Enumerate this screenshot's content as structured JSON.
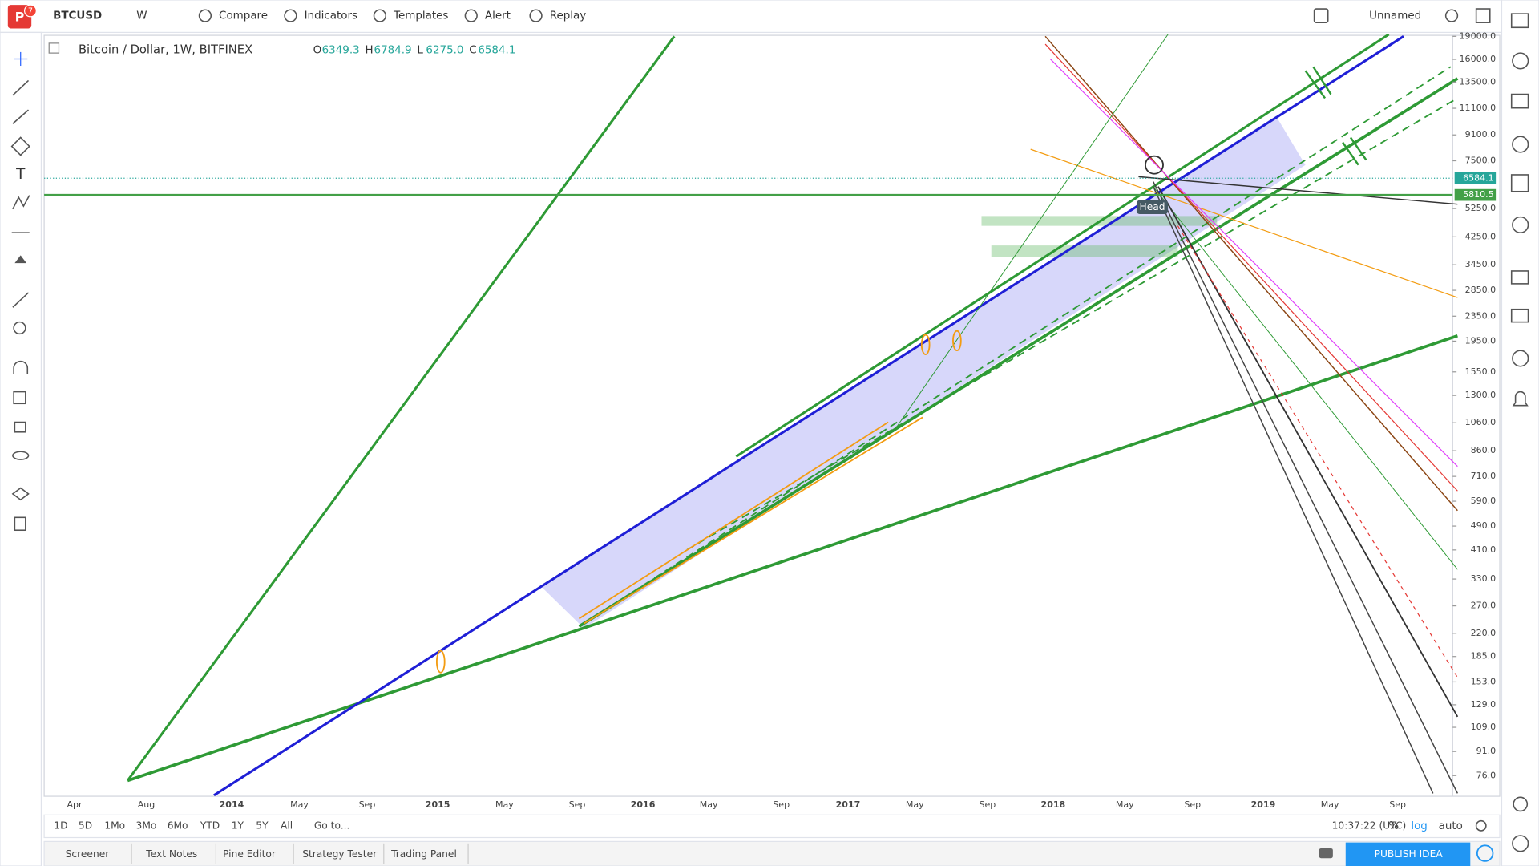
{
  "toolbar": {
    "logo_badge": "7",
    "symbol": "BTCUSD",
    "interval": "W",
    "items": [
      "Compare",
      "Indicators",
      "Templates",
      "Alert",
      "Replay"
    ],
    "layout_name": "Unnamed"
  },
  "legend": {
    "title": "Bitcoin / Dollar, 1W, BITFINEX",
    "ohlc": [
      {
        "key": "O",
        "value": "6349.3"
      },
      {
        "key": "H",
        "value": "6784.9"
      },
      {
        "key": "L",
        "value": "6275.0"
      },
      {
        "key": "C",
        "value": "6584.1"
      }
    ]
  },
  "price_axis": {
    "scale": "log",
    "ylim": [
      65.6,
      19000
    ],
    "ticks": [
      {
        "value": 19000,
        "label": "19000.0"
      },
      {
        "value": 16000,
        "label": "16000.0"
      },
      {
        "value": 13500,
        "label": "13500.0"
      },
      {
        "value": 11100,
        "label": "11100.0"
      },
      {
        "value": 9100,
        "label": "9100.0"
      },
      {
        "value": 7500,
        "label": "7500.0"
      },
      {
        "value": 5250,
        "label": "5250.0"
      },
      {
        "value": 4250,
        "label": "4250.0"
      },
      {
        "value": 3450,
        "label": "3450.0"
      },
      {
        "value": 2850,
        "label": "2850.0"
      },
      {
        "value": 2350,
        "label": "2350.0"
      },
      {
        "value": 1950,
        "label": "1950.0"
      },
      {
        "value": 1550,
        "label": "1550.0"
      },
      {
        "value": 1300,
        "label": "1300.0"
      },
      {
        "value": 1060,
        "label": "1060.0"
      },
      {
        "value": 860,
        "label": "860.0"
      },
      {
        "value": 710,
        "label": "710.0"
      },
      {
        "value": 590,
        "label": "590.0"
      },
      {
        "value": 490,
        "label": "490.0"
      },
      {
        "value": 410,
        "label": "410.0"
      },
      {
        "value": 330,
        "label": "330.0"
      },
      {
        "value": 270,
        "label": "270.0"
      },
      {
        "value": 220,
        "label": "220.0"
      },
      {
        "value": 185,
        "label": "185.0"
      },
      {
        "value": 153,
        "label": "153.0"
      },
      {
        "value": 129,
        "label": "129.0"
      },
      {
        "value": 109,
        "label": "109.0"
      },
      {
        "value": 91,
        "label": "91.0"
      },
      {
        "value": 76,
        "label": "76.0"
      }
    ],
    "price_tags": [
      {
        "value": 6584.1,
        "color": "#26a69a"
      },
      {
        "value": 5810.5,
        "color": "#43a047"
      }
    ]
  },
  "time_axis": {
    "labels": [
      "Apr",
      "Aug",
      "2014",
      "May",
      "Sep",
      "2015",
      "May",
      "Sep",
      "2016",
      "May",
      "Sep",
      "2017",
      "May",
      "Sep",
      "2018",
      "May",
      "Sep",
      "2019",
      "May",
      "Sep"
    ]
  },
  "drawing_labels": [
    "Head"
  ],
  "range_bar": {
    "buttons": [
      "1D",
      "5D",
      "1Mo",
      "3Mo",
      "6Mo",
      "YTD",
      "1Y",
      "5Y",
      "All"
    ],
    "goto": "Go to...",
    "clock": "10:37:22 (UTC)",
    "options": [
      "%",
      "log",
      "auto"
    ]
  },
  "bottom_tabs": [
    "Screener",
    "Text Notes",
    "Pine Editor",
    "Strategy Tester",
    "Trading Panel"
  ],
  "publish": "PUBLISH IDEA"
}
